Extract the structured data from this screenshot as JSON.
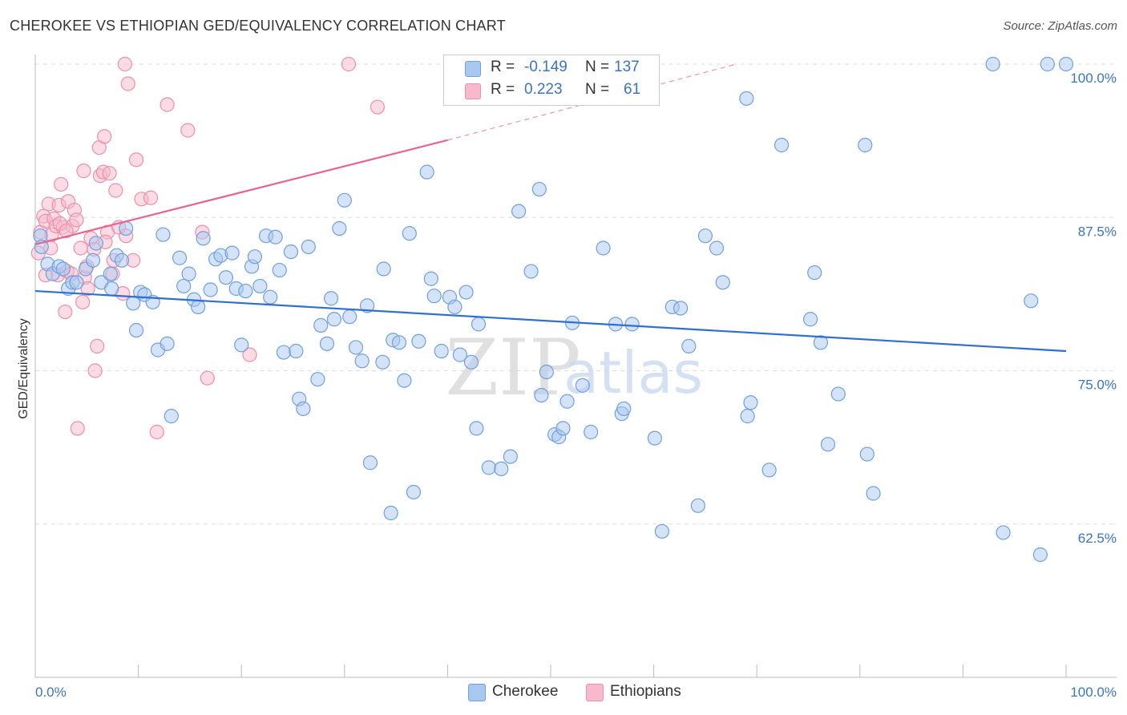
{
  "header": {
    "title": "CHEROKEE VS ETHIOPIAN GED/EQUIVALENCY CORRELATION CHART",
    "source": "Source: ZipAtlas.com"
  },
  "legend": {
    "r_label": "R =",
    "n_label": "N =",
    "rows": [
      {
        "name": "Cherokee",
        "r": "-0.149",
        "n": "137"
      },
      {
        "name": "Ethiopians",
        "r": "0.223",
        "n": "61"
      }
    ]
  },
  "watermark": {
    "part1": "ZIP",
    "part2": "atlas"
  },
  "colors": {
    "blue_fill": "#a9c8f0",
    "blue_stroke": "#6fa0df",
    "blue_line": "#2f6fd1",
    "pink_fill": "#f7b9cb",
    "pink_stroke": "#ec8fac",
    "pink_line": "#e8638f",
    "tick_text": "#3a74c4"
  },
  "chart_data": {
    "type": "scatter",
    "title": "CHEROKEE VS ETHIOPIAN GED/EQUIVALENCY CORRELATION CHART",
    "xlabel": "",
    "ylabel": "GED/Equivalency",
    "xlim": [
      0,
      100
    ],
    "ylim": [
      50,
      100
    ],
    "x_tick_labels": [
      "0.0%",
      "100.0%"
    ],
    "y_ticks": [
      {
        "value": 100,
        "label": "100.0%"
      },
      {
        "value": 87.5,
        "label": "87.5%"
      },
      {
        "value": 75,
        "label": "75.0%"
      },
      {
        "value": 62.5,
        "label": "62.5%"
      }
    ],
    "series": [
      {
        "name": "Cherokee",
        "color": "#a9c8f0",
        "r": -0.149,
        "n": 137,
        "trend": {
          "x0": 0,
          "y0": 81.5,
          "x1": 100,
          "y1": 76.6
        },
        "points": [
          [
            0.5,
            86.0
          ],
          [
            0.6,
            85.1
          ],
          [
            1.2,
            83.7
          ],
          [
            1.7,
            82.9
          ],
          [
            2.3,
            83.5
          ],
          [
            2.7,
            83.3
          ],
          [
            3.2,
            81.7
          ],
          [
            3.6,
            82.2
          ],
          [
            4.0,
            82.2
          ],
          [
            4.9,
            83.3
          ],
          [
            5.6,
            84.0
          ],
          [
            5.9,
            85.4
          ],
          [
            6.4,
            82.2
          ],
          [
            7.3,
            82.9
          ],
          [
            7.4,
            81.7
          ],
          [
            7.9,
            84.4
          ],
          [
            8.4,
            84.0
          ],
          [
            8.8,
            86.6
          ],
          [
            9.5,
            80.5
          ],
          [
            9.8,
            78.3
          ],
          [
            10.2,
            81.4
          ],
          [
            10.6,
            81.2
          ],
          [
            11.4,
            80.6
          ],
          [
            11.9,
            76.7
          ],
          [
            12.4,
            86.1
          ],
          [
            12.8,
            77.2
          ],
          [
            13.2,
            71.3
          ],
          [
            14.0,
            84.2
          ],
          [
            14.4,
            81.9
          ],
          [
            14.9,
            82.9
          ],
          [
            15.4,
            80.8
          ],
          [
            15.8,
            80.2
          ],
          [
            16.3,
            85.8
          ],
          [
            17.0,
            81.6
          ],
          [
            17.5,
            84.1
          ],
          [
            18.0,
            84.4
          ],
          [
            18.5,
            82.6
          ],
          [
            19.1,
            84.6
          ],
          [
            19.5,
            81.7
          ],
          [
            20.0,
            77.1
          ],
          [
            20.4,
            81.5
          ],
          [
            21.0,
            83.5
          ],
          [
            21.3,
            84.3
          ],
          [
            21.8,
            81.9
          ],
          [
            22.4,
            86.0
          ],
          [
            22.8,
            81.0
          ],
          [
            23.3,
            85.9
          ],
          [
            23.7,
            83.2
          ],
          [
            24.1,
            76.5
          ],
          [
            24.8,
            84.7
          ],
          [
            25.3,
            76.6
          ],
          [
            25.6,
            72.7
          ],
          [
            26.0,
            71.9
          ],
          [
            26.5,
            85.1
          ],
          [
            27.4,
            74.3
          ],
          [
            27.7,
            78.7
          ],
          [
            28.3,
            77.2
          ],
          [
            28.7,
            80.9
          ],
          [
            29.0,
            79.2
          ],
          [
            29.5,
            86.6
          ],
          [
            30.0,
            88.9
          ],
          [
            30.5,
            79.4
          ],
          [
            31.1,
            76.9
          ],
          [
            31.7,
            75.8
          ],
          [
            32.2,
            80.3
          ],
          [
            32.5,
            67.5
          ],
          [
            33.7,
            75.7
          ],
          [
            33.8,
            83.3
          ],
          [
            34.5,
            63.4
          ],
          [
            34.7,
            77.5
          ],
          [
            35.3,
            77.3
          ],
          [
            35.8,
            74.2
          ],
          [
            36.3,
            86.2
          ],
          [
            36.7,
            65.1
          ],
          [
            37.2,
            77.4
          ],
          [
            38.0,
            91.2
          ],
          [
            38.4,
            82.5
          ],
          [
            38.7,
            81.1
          ],
          [
            39.4,
            76.6
          ],
          [
            40.2,
            81.0
          ],
          [
            40.7,
            80.2
          ],
          [
            41.2,
            76.3
          ],
          [
            41.8,
            81.4
          ],
          [
            42.3,
            75.7
          ],
          [
            42.8,
            70.3
          ],
          [
            43.0,
            78.8
          ],
          [
            44.0,
            67.1
          ],
          [
            45.2,
            67.0
          ],
          [
            46.1,
            68.0
          ],
          [
            46.9,
            88.0
          ],
          [
            48.1,
            83.1
          ],
          [
            48.9,
            89.8
          ],
          [
            49.1,
            73.0
          ],
          [
            49.6,
            74.9
          ],
          [
            50.4,
            69.8
          ],
          [
            50.8,
            69.6
          ],
          [
            51.2,
            70.3
          ],
          [
            51.6,
            72.5
          ],
          [
            52.1,
            78.9
          ],
          [
            53.1,
            73.8
          ],
          [
            53.9,
            70.0
          ],
          [
            55.1,
            85.0
          ],
          [
            56.3,
            78.8
          ],
          [
            56.9,
            71.5
          ],
          [
            57.1,
            71.9
          ],
          [
            57.9,
            78.8
          ],
          [
            60.1,
            69.5
          ],
          [
            60.8,
            61.9
          ],
          [
            61.8,
            80.2
          ],
          [
            62.6,
            80.1
          ],
          [
            63.4,
            77.0
          ],
          [
            64.3,
            64.0
          ],
          [
            65.0,
            86.0
          ],
          [
            66.1,
            85.0
          ],
          [
            66.7,
            82.2
          ],
          [
            69.0,
            97.2
          ],
          [
            69.1,
            71.3
          ],
          [
            69.4,
            72.4
          ],
          [
            71.2,
            66.9
          ],
          [
            72.4,
            93.4
          ],
          [
            75.2,
            79.2
          ],
          [
            75.6,
            83.0
          ],
          [
            76.2,
            77.3
          ],
          [
            76.9,
            69.0
          ],
          [
            77.9,
            73.1
          ],
          [
            80.5,
            93.4
          ],
          [
            80.7,
            68.2
          ],
          [
            81.3,
            65.0
          ],
          [
            92.9,
            100.0
          ],
          [
            93.9,
            61.8
          ],
          [
            96.6,
            80.7
          ],
          [
            97.5,
            60.0
          ],
          [
            98.2,
            100.0
          ],
          [
            100.0,
            100.0
          ]
        ]
      },
      {
        "name": "Ethiopians",
        "color": "#f7b9cb",
        "r": 0.223,
        "n": 61,
        "trend": {
          "x0": 0,
          "y0": 85.3,
          "x1": 40,
          "y1": 93.8
        },
        "trend_dashed": {
          "x0": 40,
          "y0": 93.8,
          "x1": 68,
          "y1": 100.0
        },
        "points": [
          [
            0.3,
            84.6
          ],
          [
            0.5,
            86.3
          ],
          [
            0.8,
            87.6
          ],
          [
            1.0,
            87.2
          ],
          [
            1.3,
            88.6
          ],
          [
            1.6,
            86.1
          ],
          [
            1.8,
            87.4
          ],
          [
            2.0,
            86.8
          ],
          [
            2.2,
            82.8
          ],
          [
            2.3,
            88.5
          ],
          [
            2.5,
            90.2
          ],
          [
            2.7,
            86.7
          ],
          [
            3.1,
            83.1
          ],
          [
            3.2,
            88.8
          ],
          [
            3.5,
            82.9
          ],
          [
            3.6,
            86.8
          ],
          [
            3.8,
            88.1
          ],
          [
            4.0,
            87.3
          ],
          [
            4.1,
            70.3
          ],
          [
            4.4,
            85.0
          ],
          [
            4.6,
            80.6
          ],
          [
            4.7,
            91.3
          ],
          [
            4.8,
            82.6
          ],
          [
            5.1,
            81.7
          ],
          [
            5.4,
            85.8
          ],
          [
            5.7,
            84.9
          ],
          [
            5.8,
            75.0
          ],
          [
            6.0,
            77.0
          ],
          [
            6.2,
            93.2
          ],
          [
            6.3,
            90.9
          ],
          [
            6.6,
            91.2
          ],
          [
            6.7,
            94.1
          ],
          [
            7.0,
            86.3
          ],
          [
            7.2,
            91.1
          ],
          [
            7.5,
            82.9
          ],
          [
            7.8,
            89.7
          ],
          [
            8.1,
            86.7
          ],
          [
            8.5,
            81.3
          ],
          [
            8.8,
            86.0
          ],
          [
            8.7,
            100.0
          ],
          [
            9.0,
            98.4
          ],
          [
            9.5,
            84.0
          ],
          [
            9.8,
            92.2
          ],
          [
            10.3,
            89.0
          ],
          [
            11.2,
            89.1
          ],
          [
            11.8,
            70.0
          ],
          [
            12.8,
            96.7
          ],
          [
            14.8,
            94.6
          ],
          [
            16.2,
            86.3
          ],
          [
            16.7,
            74.4
          ],
          [
            20.8,
            76.3
          ],
          [
            30.4,
            100.0
          ],
          [
            33.2,
            96.5
          ],
          [
            1.0,
            82.8
          ],
          [
            2.4,
            87.0
          ],
          [
            3.0,
            86.4
          ],
          [
            5.0,
            83.5
          ],
          [
            6.8,
            85.5
          ],
          [
            7.6,
            84.0
          ],
          [
            2.9,
            79.8
          ],
          [
            1.5,
            85.0
          ]
        ]
      }
    ]
  },
  "bottom_legend": {
    "items": [
      {
        "label": "Cherokee"
      },
      {
        "label": "Ethiopians"
      }
    ]
  }
}
